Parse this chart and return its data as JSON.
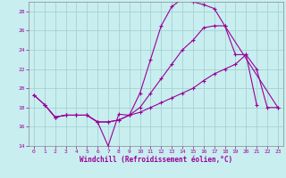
{
  "xlabel": "Windchill (Refroidissement éolien,°C)",
  "xlim": [
    -0.5,
    23.5
  ],
  "ylim": [
    14,
    29
  ],
  "yticks": [
    14,
    16,
    18,
    20,
    22,
    24,
    26,
    28
  ],
  "xticks": [
    0,
    1,
    2,
    3,
    4,
    5,
    6,
    7,
    8,
    9,
    10,
    11,
    12,
    13,
    14,
    15,
    16,
    17,
    18,
    19,
    20,
    21,
    22,
    23
  ],
  "bg_color": "#c8eef0",
  "line_color": "#990099",
  "grid_color": "#a0cccc",
  "lines": [
    {
      "x": [
        0,
        1,
        2,
        3,
        4,
        5,
        6,
        7,
        8,
        9,
        10,
        11,
        12,
        13,
        14,
        15,
        16,
        17,
        18,
        19,
        20,
        21
      ],
      "y": [
        19.3,
        18.3,
        17.0,
        17.2,
        17.2,
        17.2,
        16.5,
        14.0,
        17.3,
        17.2,
        19.5,
        23.0,
        26.5,
        28.5,
        29.3,
        29.0,
        28.7,
        28.3,
        26.5,
        23.5,
        23.5,
        18.3
      ]
    },
    {
      "x": [
        0,
        1,
        2,
        3,
        4,
        5,
        6,
        7,
        8,
        9,
        10,
        11,
        12,
        13,
        14,
        15,
        16,
        17,
        18,
        23
      ],
      "y": [
        19.3,
        18.3,
        17.0,
        17.2,
        17.2,
        17.2,
        16.5,
        16.5,
        16.7,
        17.2,
        18.0,
        19.5,
        21.0,
        22.5,
        24.0,
        25.0,
        26.3,
        26.5,
        26.5,
        18.0
      ]
    },
    {
      "x": [
        1,
        2,
        3,
        4,
        5,
        6,
        7,
        8,
        9,
        10,
        11,
        12,
        13,
        14,
        15,
        16,
        17,
        18,
        19,
        20,
        21,
        22,
        23
      ],
      "y": [
        18.3,
        17.0,
        17.2,
        17.2,
        17.2,
        16.5,
        16.5,
        16.7,
        17.2,
        17.5,
        18.0,
        18.5,
        19.0,
        19.5,
        20.0,
        20.8,
        21.5,
        22.0,
        22.5,
        23.5,
        22.0,
        18.0,
        18.0
      ]
    }
  ]
}
